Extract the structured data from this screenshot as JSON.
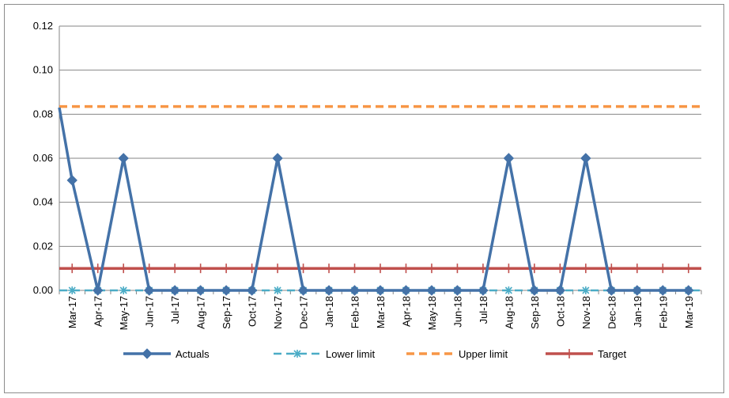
{
  "chart_data": {
    "type": "line",
    "title": "",
    "xlabel": "",
    "ylabel": "",
    "ylim": [
      0,
      0.12
    ],
    "yticks": [
      "0.00",
      "0.02",
      "0.04",
      "0.06",
      "0.08",
      "0.10",
      "0.12"
    ],
    "grid": "horizontal",
    "legend": "bottom",
    "categories": [
      "Mar-17",
      "Apr-17",
      "May-17",
      "Jun-17",
      "Jul-17",
      "Aug-17",
      "Sep-17",
      "Oct-17",
      "Nov-17",
      "Dec-17",
      "Jan-18",
      "Feb-18",
      "Mar-18",
      "Apr-18",
      "May-18",
      "Jun-18",
      "Jul-18",
      "Aug-18",
      "Sep-18",
      "Oct-18",
      "Nov-18",
      "Dec-18",
      "Jan-19",
      "Feb-19",
      "Mar-19"
    ],
    "actuals_start": 0.083,
    "series": [
      {
        "name": "Actuals",
        "color": "#4472A8",
        "style": "solid-diamond",
        "values": [
          0.05,
          0,
          0.06,
          0,
          0,
          0,
          0,
          0,
          0.06,
          0,
          0,
          0,
          0,
          0,
          0,
          0,
          0,
          0.06,
          0,
          0,
          0.06,
          0,
          0,
          0,
          0
        ]
      },
      {
        "name": "Lower limit",
        "color": "#4BACC6",
        "style": "dashed-star",
        "values": [
          0,
          0,
          0,
          0,
          0,
          0,
          0,
          0,
          0,
          0,
          0,
          0,
          0,
          0,
          0,
          0,
          0,
          0,
          0,
          0,
          0,
          0,
          0,
          0,
          0
        ]
      },
      {
        "name": "Upper limit",
        "color": "#F79646",
        "style": "dashed",
        "values": [
          0.0835,
          0.0835,
          0.0835,
          0.0835,
          0.0835,
          0.0835,
          0.0835,
          0.0835,
          0.0835,
          0.0835,
          0.0835,
          0.0835,
          0.0835,
          0.0835,
          0.0835,
          0.0835,
          0.0835,
          0.0835,
          0.0835,
          0.0835,
          0.0835,
          0.0835,
          0.0835,
          0.0835,
          0.0835
        ]
      },
      {
        "name": "Target",
        "color": "#C0504D",
        "style": "solid-plus",
        "values": [
          0.01,
          0.01,
          0.01,
          0.01,
          0.01,
          0.01,
          0.01,
          0.01,
          0.01,
          0.01,
          0.01,
          0.01,
          0.01,
          0.01,
          0.01,
          0.01,
          0.01,
          0.01,
          0.01,
          0.01,
          0.01,
          0.01,
          0.01,
          0.01,
          0.01
        ]
      }
    ]
  }
}
